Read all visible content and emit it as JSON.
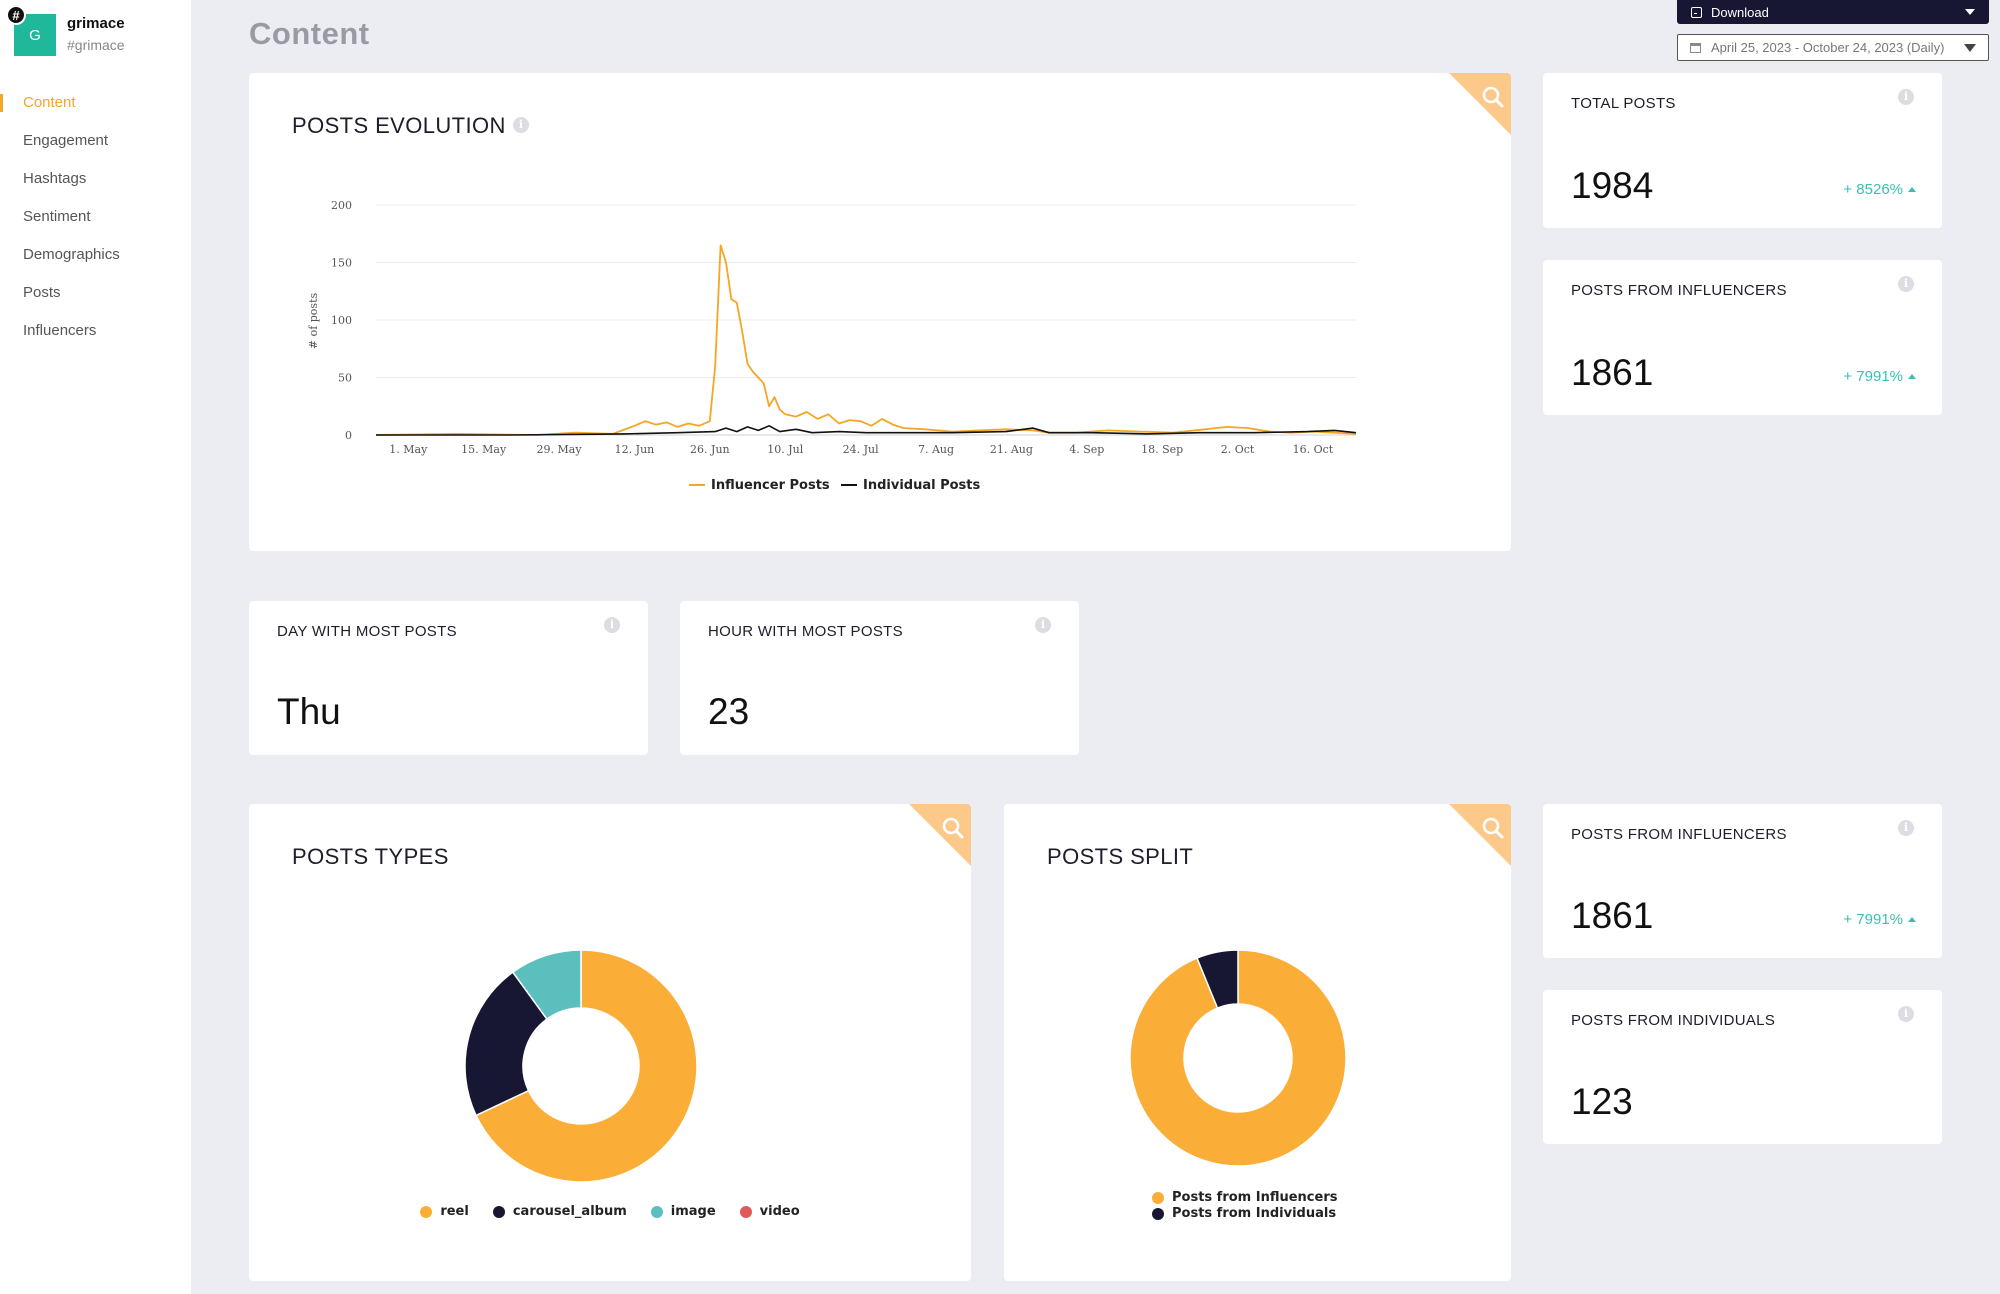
{
  "brand": {
    "initial": "G",
    "badge": "#",
    "name": "grimace",
    "tag": "#grimace"
  },
  "nav": {
    "items": [
      {
        "label": "Content",
        "active": true
      },
      {
        "label": "Engagement",
        "active": false
      },
      {
        "label": "Hashtags",
        "active": false
      },
      {
        "label": "Sentiment",
        "active": false
      },
      {
        "label": "Demographics",
        "active": false
      },
      {
        "label": "Posts",
        "active": false
      },
      {
        "label": "Influencers",
        "active": false
      }
    ]
  },
  "page": {
    "title": "Content"
  },
  "toolbar": {
    "download_label": "Download",
    "date_range": "April 25, 2023 - October 24, 2023 (Daily)"
  },
  "colors": {
    "accent": "#f5a623",
    "dark": "#181733",
    "teal": "#5bbfbe",
    "red": "#e05a5a",
    "positive": "#3bbfb3"
  },
  "posts_evolution": {
    "title": "POSTS EVOLUTION"
  },
  "stats": {
    "total_posts": {
      "label": "TOTAL POSTS",
      "value": "1984",
      "change": "+ 8526%"
    },
    "posts_from_influencers": {
      "label": "POSTS FROM INFLUENCERS",
      "value": "1861",
      "change": "+ 7991%"
    },
    "day_most_posts": {
      "label": "DAY WITH MOST POSTS",
      "value": "Thu"
    },
    "hour_most_posts": {
      "label": "HOUR WITH MOST POSTS",
      "value": "23"
    },
    "posts_from_influencers_2": {
      "label": "POSTS FROM INFLUENCERS",
      "value": "1861",
      "change": "+ 7991%"
    },
    "posts_from_individuals": {
      "label": "POSTS FROM INDIVIDUALS",
      "value": "123"
    }
  },
  "posts_types": {
    "title": "POSTS TYPES"
  },
  "posts_split": {
    "title": "POSTS SPLIT"
  },
  "chart_data": [
    {
      "type": "line",
      "title": "POSTS EVOLUTION",
      "xlabel": "",
      "ylabel": "# of posts",
      "x_start": "2023-04-25",
      "x_end": "2023-10-24",
      "ylim": [
        0,
        200
      ],
      "yticks": [
        "0",
        "50",
        "100",
        "150",
        "200"
      ],
      "xticks": [
        {
          "date": "2023-05-01",
          "label": "1. May"
        },
        {
          "date": "2023-05-15",
          "label": "15. May"
        },
        {
          "date": "2023-05-29",
          "label": "29. May"
        },
        {
          "date": "2023-06-12",
          "label": "12. Jun"
        },
        {
          "date": "2023-06-26",
          "label": "26. Jun"
        },
        {
          "date": "2023-07-10",
          "label": "10. Jul"
        },
        {
          "date": "2023-07-24",
          "label": "24. Jul"
        },
        {
          "date": "2023-08-07",
          "label": "7. Aug"
        },
        {
          "date": "2023-08-21",
          "label": "21. Aug"
        },
        {
          "date": "2023-09-04",
          "label": "4. Sep"
        },
        {
          "date": "2023-09-18",
          "label": "18. Sep"
        },
        {
          "date": "2023-10-02",
          "label": "2. Oct"
        },
        {
          "date": "2023-10-16",
          "label": "16. Oct"
        }
      ],
      "grid": true,
      "legend": "bottom",
      "series": [
        {
          "name": "Influencer Posts",
          "color": "#f5a623",
          "points": [
            [
              "2023-04-25",
              0
            ],
            [
              "2023-05-10",
              1
            ],
            [
              "2023-05-25",
              0
            ],
            [
              "2023-06-01",
              2
            ],
            [
              "2023-06-08",
              1
            ],
            [
              "2023-06-12",
              8
            ],
            [
              "2023-06-14",
              12
            ],
            [
              "2023-06-16",
              9
            ],
            [
              "2023-06-18",
              11
            ],
            [
              "2023-06-20",
              7
            ],
            [
              "2023-06-22",
              10
            ],
            [
              "2023-06-24",
              8
            ],
            [
              "2023-06-26",
              12
            ],
            [
              "2023-06-27",
              60
            ],
            [
              "2023-06-28",
              165
            ],
            [
              "2023-06-29",
              150
            ],
            [
              "2023-06-30",
              118
            ],
            [
              "2023-07-01",
              115
            ],
            [
              "2023-07-02",
              90
            ],
            [
              "2023-07-03",
              62
            ],
            [
              "2023-07-04",
              55
            ],
            [
              "2023-07-05",
              50
            ],
            [
              "2023-07-06",
              45
            ],
            [
              "2023-07-07",
              25
            ],
            [
              "2023-07-08",
              33
            ],
            [
              "2023-07-09",
              22
            ],
            [
              "2023-07-10",
              18
            ],
            [
              "2023-07-12",
              16
            ],
            [
              "2023-07-14",
              20
            ],
            [
              "2023-07-16",
              14
            ],
            [
              "2023-07-18",
              18
            ],
            [
              "2023-07-20",
              10
            ],
            [
              "2023-07-22",
              13
            ],
            [
              "2023-07-24",
              12
            ],
            [
              "2023-07-26",
              8
            ],
            [
              "2023-07-28",
              14
            ],
            [
              "2023-07-30",
              9
            ],
            [
              "2023-08-01",
              6
            ],
            [
              "2023-08-05",
              5
            ],
            [
              "2023-08-10",
              3
            ],
            [
              "2023-08-15",
              4
            ],
            [
              "2023-08-20",
              5
            ],
            [
              "2023-08-25",
              4
            ],
            [
              "2023-08-28",
              2
            ],
            [
              "2023-09-02",
              2
            ],
            [
              "2023-09-08",
              4
            ],
            [
              "2023-09-14",
              3
            ],
            [
              "2023-09-20",
              2
            ],
            [
              "2023-09-26",
              5
            ],
            [
              "2023-09-30",
              7
            ],
            [
              "2023-10-04",
              6
            ],
            [
              "2023-10-08",
              3
            ],
            [
              "2023-10-12",
              2
            ],
            [
              "2023-10-16",
              3
            ],
            [
              "2023-10-20",
              2
            ],
            [
              "2023-10-24",
              1
            ]
          ]
        },
        {
          "name": "Individual Posts",
          "color": "#111111",
          "points": [
            [
              "2023-04-25",
              0
            ],
            [
              "2023-05-20",
              0
            ],
            [
              "2023-06-10",
              1
            ],
            [
              "2023-06-20",
              2
            ],
            [
              "2023-06-27",
              3
            ],
            [
              "2023-06-29",
              6
            ],
            [
              "2023-07-01",
              3
            ],
            [
              "2023-07-03",
              7
            ],
            [
              "2023-07-05",
              4
            ],
            [
              "2023-07-07",
              8
            ],
            [
              "2023-07-09",
              3
            ],
            [
              "2023-07-12",
              5
            ],
            [
              "2023-07-15",
              2
            ],
            [
              "2023-07-20",
              3
            ],
            [
              "2023-07-25",
              2
            ],
            [
              "2023-08-01",
              2
            ],
            [
              "2023-08-10",
              2
            ],
            [
              "2023-08-20",
              3
            ],
            [
              "2023-08-25",
              6
            ],
            [
              "2023-08-28",
              2
            ],
            [
              "2023-09-05",
              2
            ],
            [
              "2023-09-15",
              1
            ],
            [
              "2023-09-25",
              2
            ],
            [
              "2023-10-05",
              2
            ],
            [
              "2023-10-15",
              3
            ],
            [
              "2023-10-20",
              4
            ],
            [
              "2023-10-24",
              2
            ]
          ]
        }
      ]
    },
    {
      "type": "pie",
      "title": "POSTS TYPES",
      "donut": true,
      "legend": "bottom",
      "slices": [
        {
          "name": "reel",
          "value": 68,
          "color": "#fbae37"
        },
        {
          "name": "carousel_album",
          "value": 22,
          "color": "#181733"
        },
        {
          "name": "image",
          "value": 10,
          "color": "#5bbfbe"
        },
        {
          "name": "video",
          "value": 0,
          "color": "#e05a5a"
        }
      ]
    },
    {
      "type": "pie",
      "title": "POSTS SPLIT",
      "donut": true,
      "legend": "bottom",
      "slices": [
        {
          "name": "Posts from Influencers",
          "value": 1861,
          "color": "#fbae37"
        },
        {
          "name": "Posts from Individuals",
          "value": 123,
          "color": "#181733"
        }
      ]
    }
  ]
}
